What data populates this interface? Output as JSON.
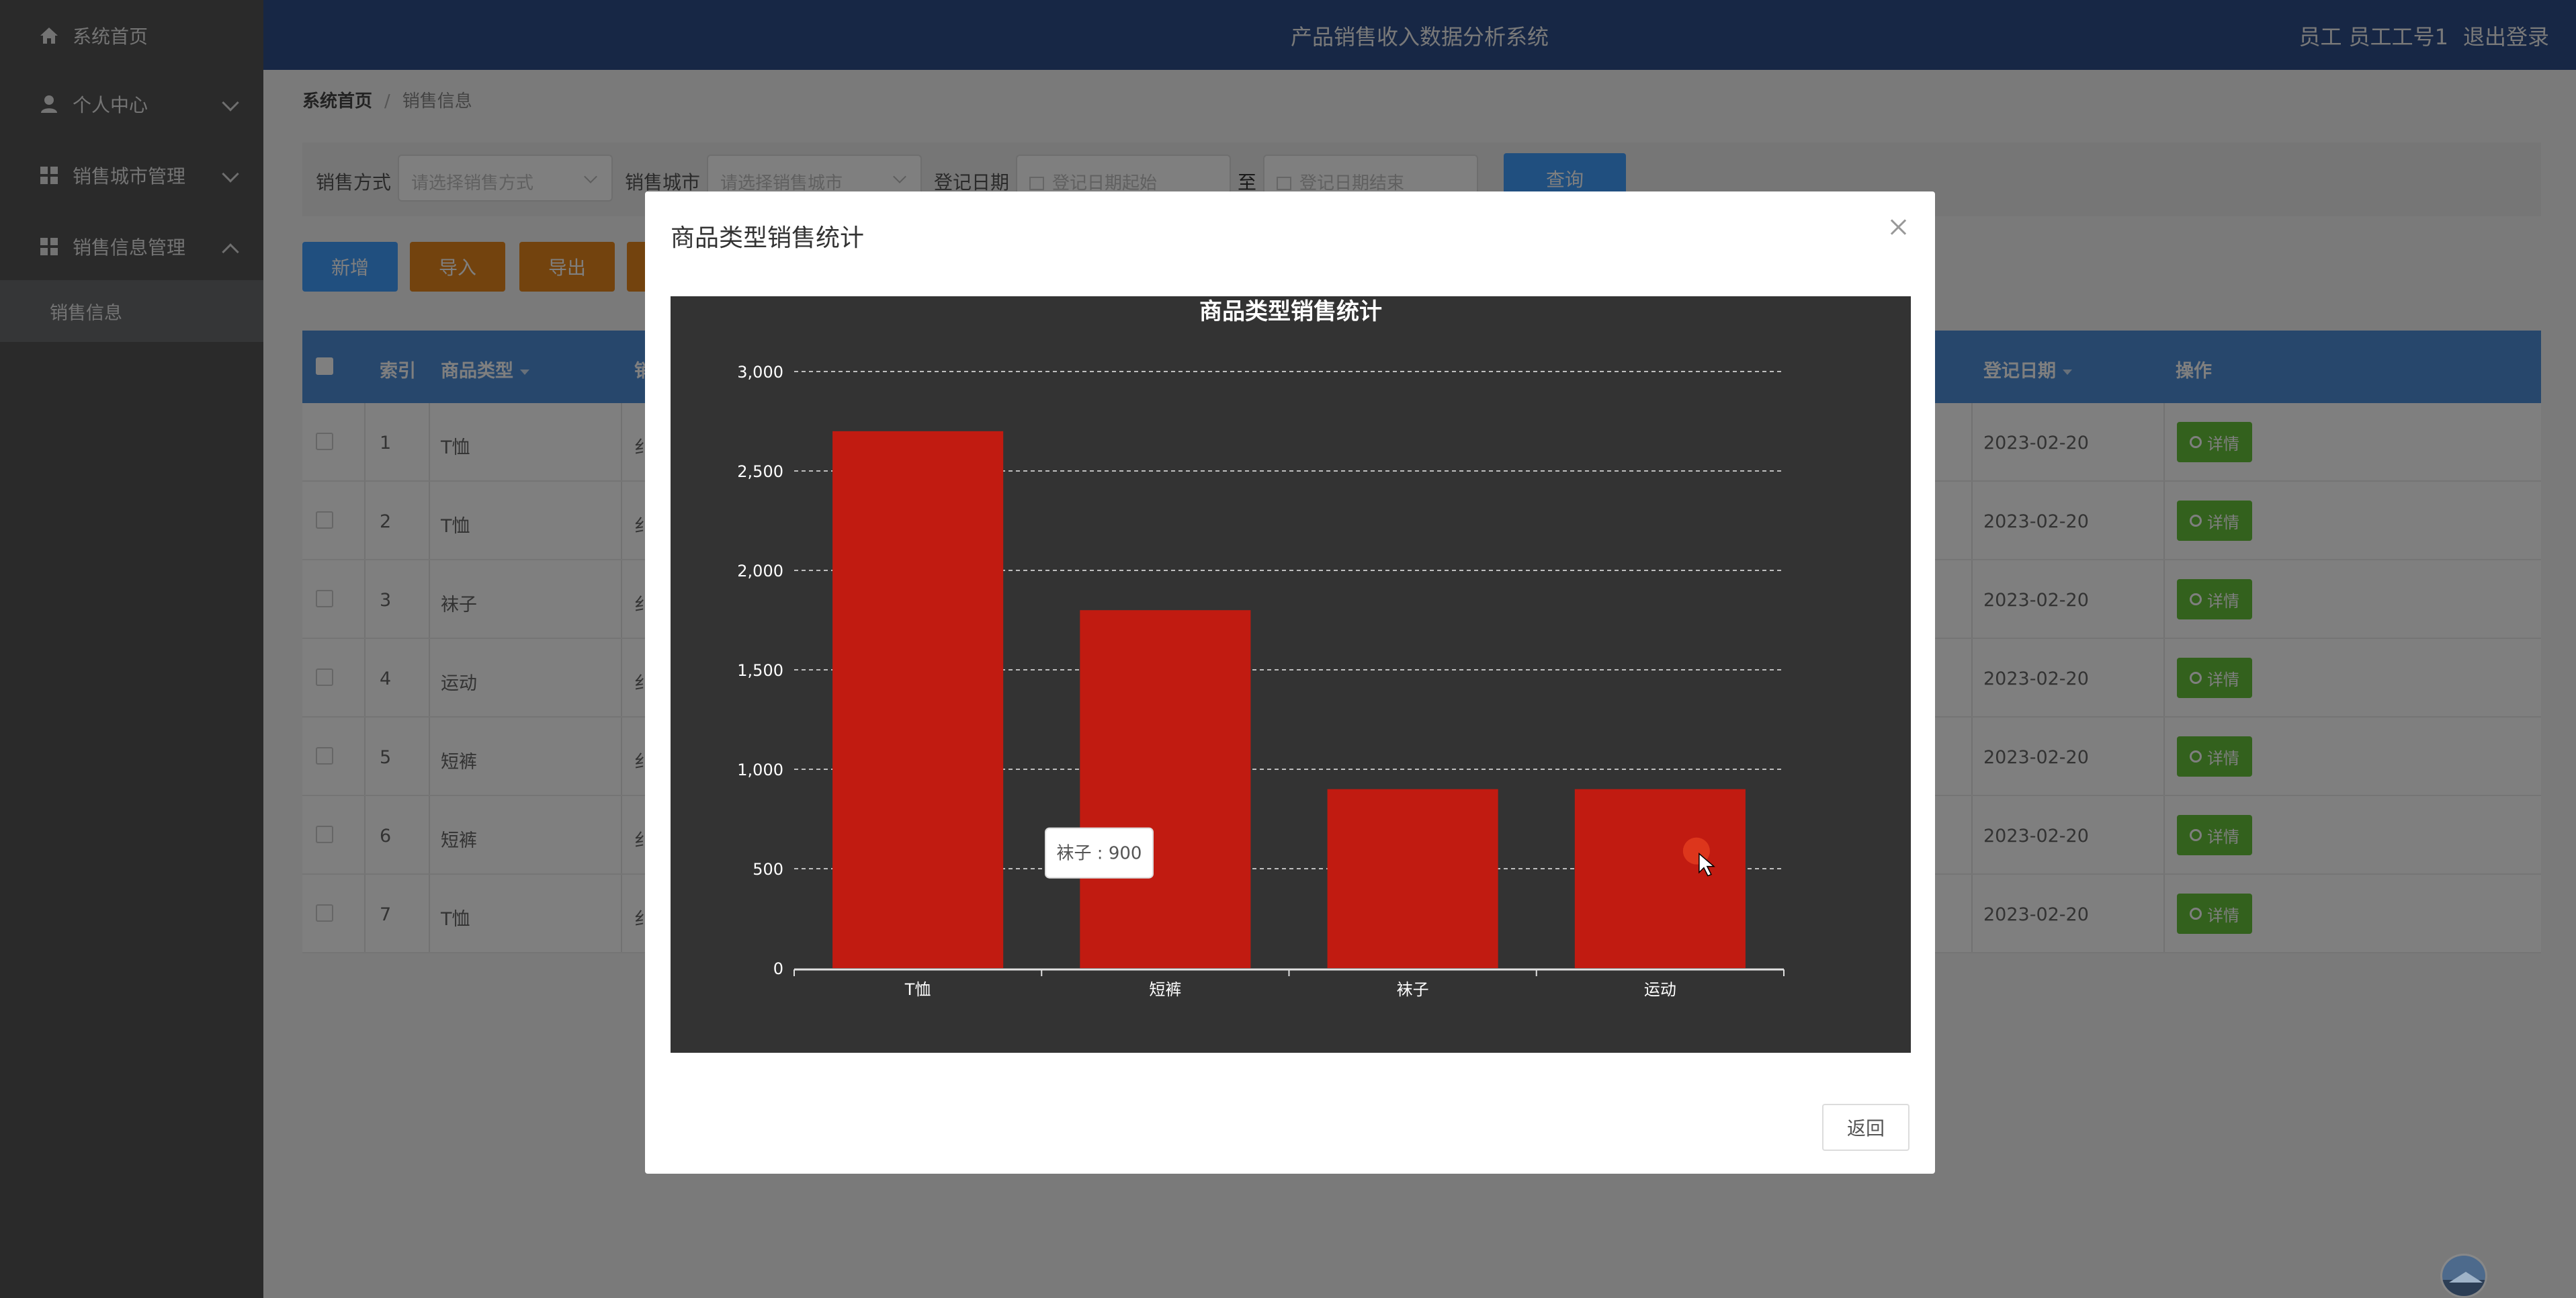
{
  "header": {
    "title": "产品销售收入数据分析系统",
    "user_label": "员工 员工工号1",
    "logout": "退出登录"
  },
  "sidebar": {
    "items": [
      {
        "label": "系统首页"
      },
      {
        "label": "个人中心"
      },
      {
        "label": "销售城市管理"
      },
      {
        "label": "销售信息管理"
      }
    ],
    "sub_item": "销售信息"
  },
  "breadcrumb": {
    "home": "系统首页",
    "current": "销售信息"
  },
  "filter": {
    "method_label": "销售方式",
    "method_placeholder": "请选择销售方式",
    "city_label": "销售城市",
    "city_placeholder": "请选择销售城市",
    "date_label": "登记日期",
    "date_start": "登记日期起始",
    "date_to": "至",
    "date_end": "登记日期结束",
    "search": "查询"
  },
  "toolbar": {
    "add": "新增",
    "import": "导入",
    "export": "导出"
  },
  "table": {
    "headers": {
      "index": "索引",
      "category": "商品类型",
      "partial": "销",
      "date": "登记日期",
      "ops": "操作"
    },
    "detail_label": "详情",
    "rows": [
      {
        "index": "1",
        "category": "T恤",
        "partial": "纟",
        "date": "2023-02-20"
      },
      {
        "index": "2",
        "category": "T恤",
        "partial": "纟",
        "date": "2023-02-20"
      },
      {
        "index": "3",
        "category": "袜子",
        "partial": "纟",
        "date": "2023-02-20"
      },
      {
        "index": "4",
        "category": "运动",
        "partial": "纟",
        "date": "2023-02-20"
      },
      {
        "index": "5",
        "category": "短裤",
        "partial": "纟",
        "date": "2023-02-20"
      },
      {
        "index": "6",
        "category": "短裤",
        "partial": "纟",
        "date": "2023-02-20"
      },
      {
        "index": "7",
        "category": "T恤",
        "partial": "纟",
        "date": "2023-02-20"
      }
    ]
  },
  "dialog": {
    "title": "商品类型销售统计",
    "back": "返回"
  },
  "chart_data": {
    "type": "bar",
    "title": "商品类型销售统计",
    "categories": [
      "T恤",
      "短裤",
      "袜子",
      "运动"
    ],
    "values": [
      2700,
      1800,
      900,
      900
    ],
    "ylim": [
      0,
      3000
    ],
    "yticks": [
      0,
      500,
      1000,
      1500,
      2000,
      2500,
      3000
    ],
    "ytick_labels": [
      "0",
      "500",
      "1,000",
      "1,500",
      "2,000",
      "2,500",
      "3,000"
    ],
    "grid": true,
    "bar_color": "#c11b11",
    "background": "#333333",
    "tooltip": "袜子 : 900"
  },
  "colors": {
    "sidebar": "#545454",
    "topbar": "#2e4e8a",
    "primary": "#409eff",
    "warning": "#e6861c",
    "success": "#67c23a"
  }
}
